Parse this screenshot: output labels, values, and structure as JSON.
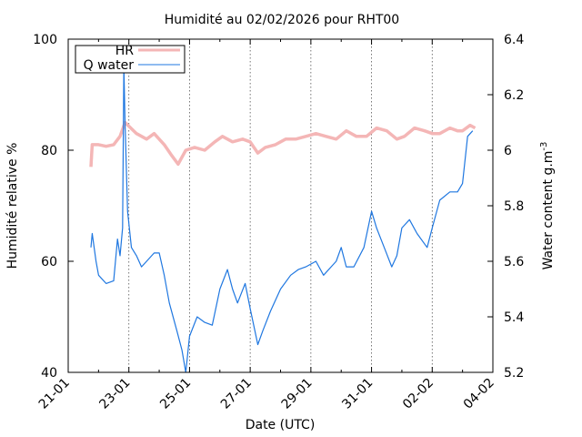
{
  "chart_data": {
    "type": "line",
    "title": "Humidité au 02/02/2026 pour RHT00",
    "xlabel": "Date (UTC)",
    "ylabel_left": "Humidité relative %",
    "ylabel_right": "Water content g.m",
    "ylabel_right_superscript": "-3",
    "x_range": [
      "2026-01-21",
      "2026-02-04"
    ],
    "x_ticks": [
      {
        "date": "2026-01-21",
        "label": "21-01"
      },
      {
        "date": "2026-01-23",
        "label": "23-01"
      },
      {
        "date": "2026-01-25",
        "label": "25-01"
      },
      {
        "date": "2026-01-27",
        "label": "27-01"
      },
      {
        "date": "2026-01-29",
        "label": "29-01"
      },
      {
        "date": "2026-01-31",
        "label": "31-01"
      },
      {
        "date": "2026-02-02",
        "label": "02-02"
      },
      {
        "date": "2026-02-04",
        "label": "04-02"
      }
    ],
    "vertical_grid_dates": [
      "2026-01-23",
      "2026-01-25",
      "2026-01-27",
      "2026-01-29",
      "2026-01-31",
      "2026-02-02"
    ],
    "y_left": {
      "min": 40,
      "max": 100,
      "ticks": [
        "40",
        "60",
        "80",
        "100"
      ]
    },
    "y_right": {
      "min": 5.2,
      "max": 6.4,
      "ticks": [
        "5.2",
        "5.4",
        "5.6",
        "5.8",
        "6",
        "6.2",
        "6.4"
      ]
    },
    "legend": {
      "position": "top-left",
      "entries": [
        "HR",
        "Q water"
      ]
    },
    "series": [
      {
        "name": "HR",
        "axis": "left",
        "color": "#f4b6b6",
        "points": [
          [
            "2026-01-21T18:00",
            77
          ],
          [
            "2026-01-21T19:00",
            81
          ],
          [
            "2026-01-22T00:00",
            81
          ],
          [
            "2026-01-22T06:00",
            80.7
          ],
          [
            "2026-01-22T12:00",
            81
          ],
          [
            "2026-01-22T17:00",
            82.5
          ],
          [
            "2026-01-22T21:00",
            85
          ],
          [
            "2026-01-23T06:00",
            83
          ],
          [
            "2026-01-23T14:00",
            82
          ],
          [
            "2026-01-23T20:00",
            83
          ],
          [
            "2026-01-24T04:00",
            81
          ],
          [
            "2026-01-24T10:00",
            79
          ],
          [
            "2026-01-24T15:00",
            77.5
          ],
          [
            "2026-01-24T21:00",
            80
          ],
          [
            "2026-01-25T04:00",
            80.5
          ],
          [
            "2026-01-25T12:00",
            80
          ],
          [
            "2026-01-25T20:00",
            81.5
          ],
          [
            "2026-01-26T02:00",
            82.5
          ],
          [
            "2026-01-26T10:00",
            81.5
          ],
          [
            "2026-01-26T18:00",
            82
          ],
          [
            "2026-01-27T00:00",
            81.5
          ],
          [
            "2026-01-27T06:00",
            79.5
          ],
          [
            "2026-01-27T12:00",
            80.5
          ],
          [
            "2026-01-27T20:00",
            81
          ],
          [
            "2026-01-28T04:00",
            82
          ],
          [
            "2026-01-28T12:00",
            82
          ],
          [
            "2026-01-28T20:00",
            82.5
          ],
          [
            "2026-01-29T04:00",
            83
          ],
          [
            "2026-01-29T12:00",
            82.5
          ],
          [
            "2026-01-29T20:00",
            82
          ],
          [
            "2026-01-30T04:00",
            83.5
          ],
          [
            "2026-01-30T12:00",
            82.5
          ],
          [
            "2026-01-30T20:00",
            82.5
          ],
          [
            "2026-01-31T04:00",
            84
          ],
          [
            "2026-01-31T12:00",
            83.5
          ],
          [
            "2026-01-31T20:00",
            82
          ],
          [
            "2026-02-01T02:00",
            82.5
          ],
          [
            "2026-02-01T10:00",
            84
          ],
          [
            "2026-02-01T18:00",
            83.5
          ],
          [
            "2026-02-02T00:00",
            83
          ],
          [
            "2026-02-02T06:00",
            83
          ],
          [
            "2026-02-02T14:00",
            84
          ],
          [
            "2026-02-02T20:00",
            83.5
          ],
          [
            "2026-02-03T00:00",
            83.5
          ],
          [
            "2026-02-03T06:00",
            84.5
          ],
          [
            "2026-02-03T10:00",
            84
          ]
        ]
      },
      {
        "name": "Q water",
        "axis": "right",
        "color": "#1f77e0",
        "points": [
          [
            "2026-01-21T18:00",
            5.65
          ],
          [
            "2026-01-21T19:00",
            5.7
          ],
          [
            "2026-01-21T22:00",
            5.6
          ],
          [
            "2026-01-22T00:00",
            5.55
          ],
          [
            "2026-01-22T06:00",
            5.52
          ],
          [
            "2026-01-22T12:00",
            5.53
          ],
          [
            "2026-01-22T15:00",
            5.68
          ],
          [
            "2026-01-22T17:00",
            5.62
          ],
          [
            "2026-01-22T19:00",
            5.72
          ],
          [
            "2026-01-22T20:00",
            6.3
          ],
          [
            "2026-01-22T21:00",
            6.1
          ],
          [
            "2026-01-22T23:00",
            5.78
          ],
          [
            "2026-01-23T02:00",
            5.65
          ],
          [
            "2026-01-23T06:00",
            5.62
          ],
          [
            "2026-01-23T10:00",
            5.58
          ],
          [
            "2026-01-23T14:00",
            5.6
          ],
          [
            "2026-01-23T20:00",
            5.63
          ],
          [
            "2026-01-24T00:00",
            5.63
          ],
          [
            "2026-01-24T04:00",
            5.55
          ],
          [
            "2026-01-24T08:00",
            5.45
          ],
          [
            "2026-01-24T14:00",
            5.35
          ],
          [
            "2026-01-24T18:00",
            5.28
          ],
          [
            "2026-01-24T21:00",
            5.2
          ],
          [
            "2026-01-25T00:00",
            5.33
          ],
          [
            "2026-01-25T06:00",
            5.4
          ],
          [
            "2026-01-25T12:00",
            5.38
          ],
          [
            "2026-01-25T18:00",
            5.37
          ],
          [
            "2026-01-26T00:00",
            5.5
          ],
          [
            "2026-01-26T06:00",
            5.57
          ],
          [
            "2026-01-26T10:00",
            5.5
          ],
          [
            "2026-01-26T14:00",
            5.45
          ],
          [
            "2026-01-26T20:00",
            5.52
          ],
          [
            "2026-01-27T00:00",
            5.43
          ],
          [
            "2026-01-27T06:00",
            5.3
          ],
          [
            "2026-01-27T10:00",
            5.35
          ],
          [
            "2026-01-27T16:00",
            5.42
          ],
          [
            "2026-01-28T00:00",
            5.5
          ],
          [
            "2026-01-28T08:00",
            5.55
          ],
          [
            "2026-01-28T14:00",
            5.57
          ],
          [
            "2026-01-28T20:00",
            5.58
          ],
          [
            "2026-01-29T04:00",
            5.6
          ],
          [
            "2026-01-29T10:00",
            5.55
          ],
          [
            "2026-01-29T16:00",
            5.58
          ],
          [
            "2026-01-29T20:00",
            5.6
          ],
          [
            "2026-01-30T00:00",
            5.65
          ],
          [
            "2026-01-30T04:00",
            5.58
          ],
          [
            "2026-01-30T10:00",
            5.58
          ],
          [
            "2026-01-30T18:00",
            5.65
          ],
          [
            "2026-01-31T00:00",
            5.78
          ],
          [
            "2026-01-31T04:00",
            5.72
          ],
          [
            "2026-01-31T10:00",
            5.65
          ],
          [
            "2026-01-31T16:00",
            5.58
          ],
          [
            "2026-01-31T20:00",
            5.62
          ],
          [
            "2026-02-01T00:00",
            5.72
          ],
          [
            "2026-02-01T06:00",
            5.75
          ],
          [
            "2026-02-01T12:00",
            5.7
          ],
          [
            "2026-02-01T20:00",
            5.65
          ],
          [
            "2026-02-02T00:00",
            5.72
          ],
          [
            "2026-02-02T06:00",
            5.82
          ],
          [
            "2026-02-02T14:00",
            5.85
          ],
          [
            "2026-02-02T20:00",
            5.85
          ],
          [
            "2026-02-03T00:00",
            5.88
          ],
          [
            "2026-02-03T04:00",
            6.05
          ],
          [
            "2026-02-03T08:00",
            6.07
          ]
        ]
      }
    ]
  }
}
